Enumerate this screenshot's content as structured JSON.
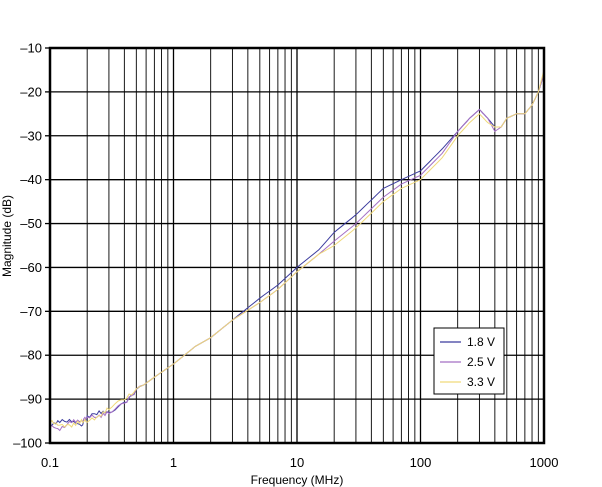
{
  "chart_data": {
    "type": "line",
    "title": "",
    "xlabel": "Frequency (MHz)",
    "ylabel": "Magnitude (dB)",
    "x_scale": "log",
    "xlim": [
      0.1,
      1000
    ],
    "ylim": [
      -100,
      -10
    ],
    "x_ticks": [
      0.1,
      1,
      10,
      100,
      1000
    ],
    "x_tick_labels": [
      "0.1",
      "1",
      "10",
      "100",
      "1000"
    ],
    "y_ticks": [
      -10,
      -20,
      -30,
      -40,
      -50,
      -60,
      -70,
      -80,
      -90,
      -100
    ],
    "y_tick_labels": [
      "–10",
      "–20",
      "–30",
      "–40",
      "–50",
      "–60",
      "–70",
      "–80",
      "–90",
      "–100"
    ],
    "grid": true,
    "legend_position": "bottom-right",
    "series": [
      {
        "name": "1.8 V",
        "color": "#3b3b9e",
        "x": [
          0.1,
          0.12,
          0.15,
          0.18,
          0.2,
          0.25,
          0.3,
          0.4,
          0.5,
          0.7,
          1,
          1.5,
          2,
          3,
          5,
          7,
          10,
          15,
          20,
          30,
          50,
          70,
          100,
          150,
          200,
          250,
          300,
          350,
          400,
          450,
          500,
          600,
          700,
          800,
          900,
          1000
        ],
        "y": [
          -96,
          -95,
          -95,
          -96,
          -94,
          -93,
          -93,
          -91,
          -88,
          -85,
          -82,
          -78,
          -76,
          -72,
          -67,
          -64,
          -60,
          -56,
          -52,
          -48,
          -42,
          -40,
          -38,
          -33,
          -29,
          -26,
          -24,
          -26,
          -28,
          -28,
          -26,
          -25,
          -25,
          -23,
          -20,
          -16
        ]
      },
      {
        "name": "2.5 V",
        "color": "#a46fc4",
        "x": [
          0.1,
          0.12,
          0.15,
          0.18,
          0.2,
          0.25,
          0.3,
          0.4,
          0.5,
          0.7,
          1,
          1.5,
          2,
          3,
          5,
          7,
          10,
          15,
          20,
          30,
          50,
          70,
          100,
          150,
          200,
          250,
          300,
          350,
          400,
          450,
          500,
          600,
          700,
          800,
          900,
          1000
        ],
        "y": [
          -96,
          -97,
          -95,
          -95,
          -94,
          -94,
          -93,
          -91,
          -88,
          -85,
          -82,
          -78,
          -76,
          -72,
          -68,
          -65,
          -61,
          -57,
          -54,
          -50,
          -44,
          -41,
          -39,
          -34,
          -29,
          -26,
          -24,
          -26,
          -29,
          -28,
          -26,
          -25,
          -25,
          -23,
          -20,
          -16
        ]
      },
      {
        "name": "3.3 V",
        "color": "#f0d97a",
        "x": [
          0.1,
          0.12,
          0.15,
          0.18,
          0.2,
          0.25,
          0.3,
          0.4,
          0.5,
          0.7,
          1,
          1.5,
          2,
          3,
          5,
          7,
          10,
          15,
          20,
          30,
          50,
          70,
          100,
          150,
          200,
          250,
          300,
          350,
          400,
          450,
          500,
          600,
          700,
          800,
          900,
          1000
        ],
        "y": [
          -95,
          -96,
          -96,
          -95,
          -95,
          -94,
          -92,
          -90,
          -88,
          -85,
          -82,
          -78,
          -76,
          -72,
          -68,
          -65,
          -61,
          -57,
          -55,
          -51,
          -45,
          -42,
          -40,
          -35,
          -30,
          -27,
          -25,
          -27,
          -28,
          -28,
          -26,
          -25,
          -25,
          -23,
          -20,
          -15
        ]
      }
    ]
  }
}
